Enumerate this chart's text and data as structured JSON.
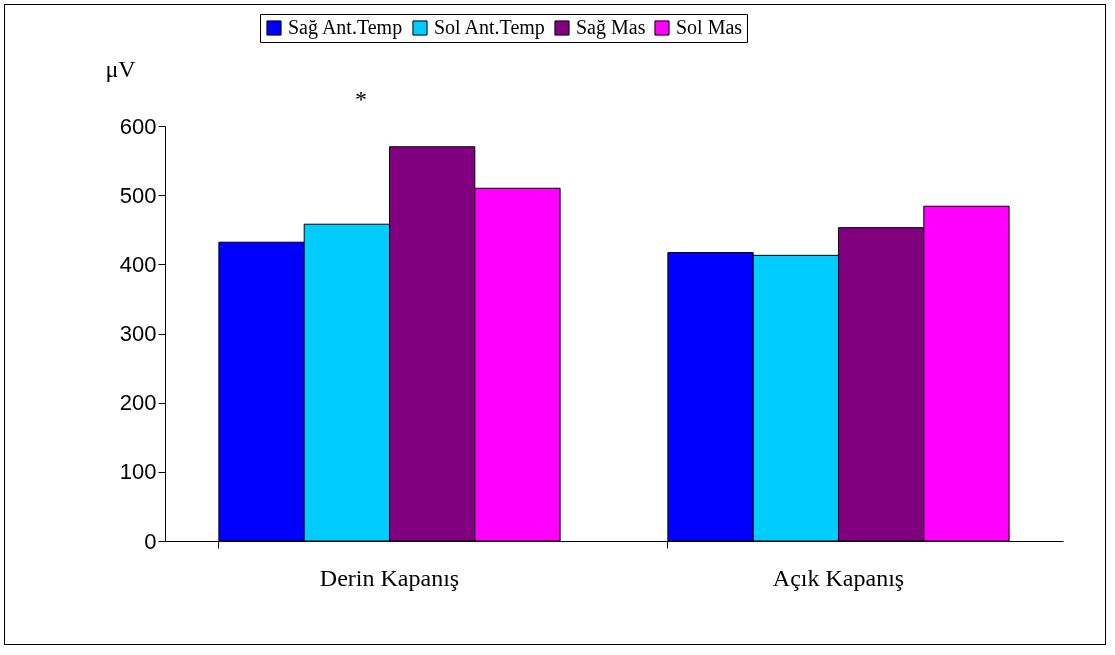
{
  "chart_data": {
    "type": "bar",
    "ylabel": "μV",
    "categories": [
      "Derin Kapanış",
      "Açık Kapanış"
    ],
    "series": [
      {
        "name": "Sağ Ant.Temp",
        "color": "#0000ff",
        "values": [
          432,
          417
        ]
      },
      {
        "name": "Sol Ant.Temp",
        "color": "#00ccff",
        "values": [
          458,
          413
        ]
      },
      {
        "name": "Sağ Mas",
        "color": "#800080",
        "values": [
          570,
          453
        ]
      },
      {
        "name": "Sol Mas",
        "color": "#ff00ff",
        "values": [
          510,
          484
        ]
      }
    ],
    "ylim": [
      0,
      600
    ],
    "yticks": [
      0,
      100,
      200,
      300,
      400,
      500,
      600
    ],
    "grid": false,
    "legend": "top",
    "annotations": [
      "*"
    ]
  }
}
